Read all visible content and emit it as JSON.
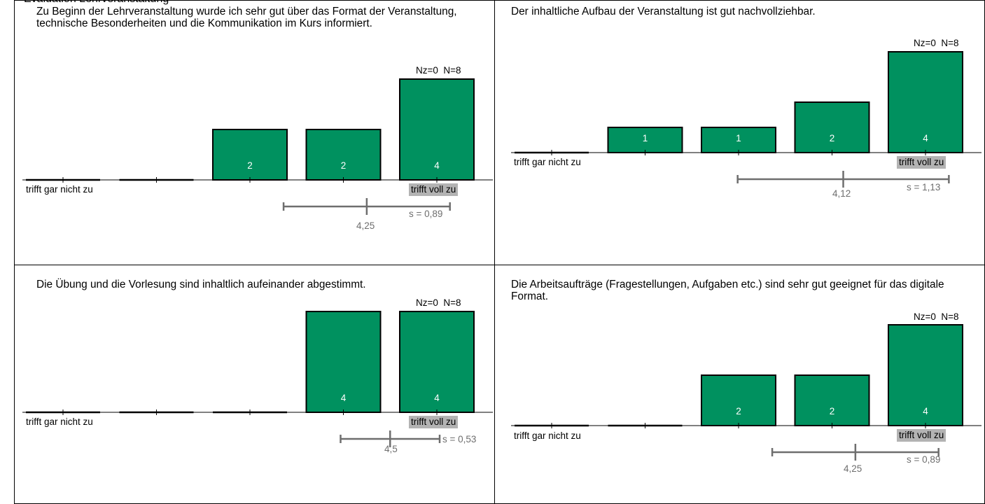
{
  "page": {
    "header_text": "Evaluation Lehrveranstaltung"
  },
  "scale": {
    "low_label": "trifft gar nicht zu",
    "high_label": "trifft voll zu"
  },
  "style": {
    "bar_color": "#00915f",
    "bar_border": "#000000",
    "stat_color": "#6e6e6e",
    "label_bg": "#b3b3b3"
  },
  "chart_data": [
    {
      "type": "bar",
      "title": "Zu Beginn der Lehrveranstaltung wurde ich sehr gut über das Format der Veranstaltung, technische Besonderheiten und die Kommunikation im Kurs informiert.",
      "categories": [
        "1",
        "2",
        "3",
        "4",
        "5"
      ],
      "values": [
        0,
        0,
        2,
        2,
        4
      ],
      "nz": "Nz=0",
      "n": "N=8",
      "mean": 4.25,
      "mean_label": "4,25",
      "sd": 0.89,
      "sd_label": "s = 0,89"
    },
    {
      "type": "bar",
      "title": "Der inhaltliche Aufbau der Veranstaltung ist gut nachvollziehbar.",
      "categories": [
        "1",
        "2",
        "3",
        "4",
        "5"
      ],
      "values": [
        0,
        1,
        1,
        2,
        4
      ],
      "nz": "Nz=0",
      "n": "N=8",
      "mean": 4.12,
      "mean_label": "4,12",
      "sd": 1.13,
      "sd_label": "s = 1,13"
    },
    {
      "type": "bar",
      "title": "Die Übung und die Vorlesung sind inhaltlich aufeinander abgestimmt.",
      "categories": [
        "1",
        "2",
        "3",
        "4",
        "5"
      ],
      "values": [
        0,
        0,
        0,
        4,
        4
      ],
      "nz": "Nz=0",
      "n": "N=8",
      "mean": 4.5,
      "mean_label": "4,5",
      "sd": 0.53,
      "sd_label": "s = 0,53"
    },
    {
      "type": "bar",
      "title": "Die Arbeitsaufträge (Fragestellungen, Aufgaben etc.) sind sehr gut geeignet für das digitale Format.",
      "categories": [
        "1",
        "2",
        "3",
        "4",
        "5"
      ],
      "values": [
        0,
        0,
        2,
        2,
        4
      ],
      "nz": "Nz=0",
      "n": "N=8",
      "mean": 4.25,
      "mean_label": "4,25",
      "sd": 0.89,
      "sd_label": "s = 0,89"
    }
  ]
}
